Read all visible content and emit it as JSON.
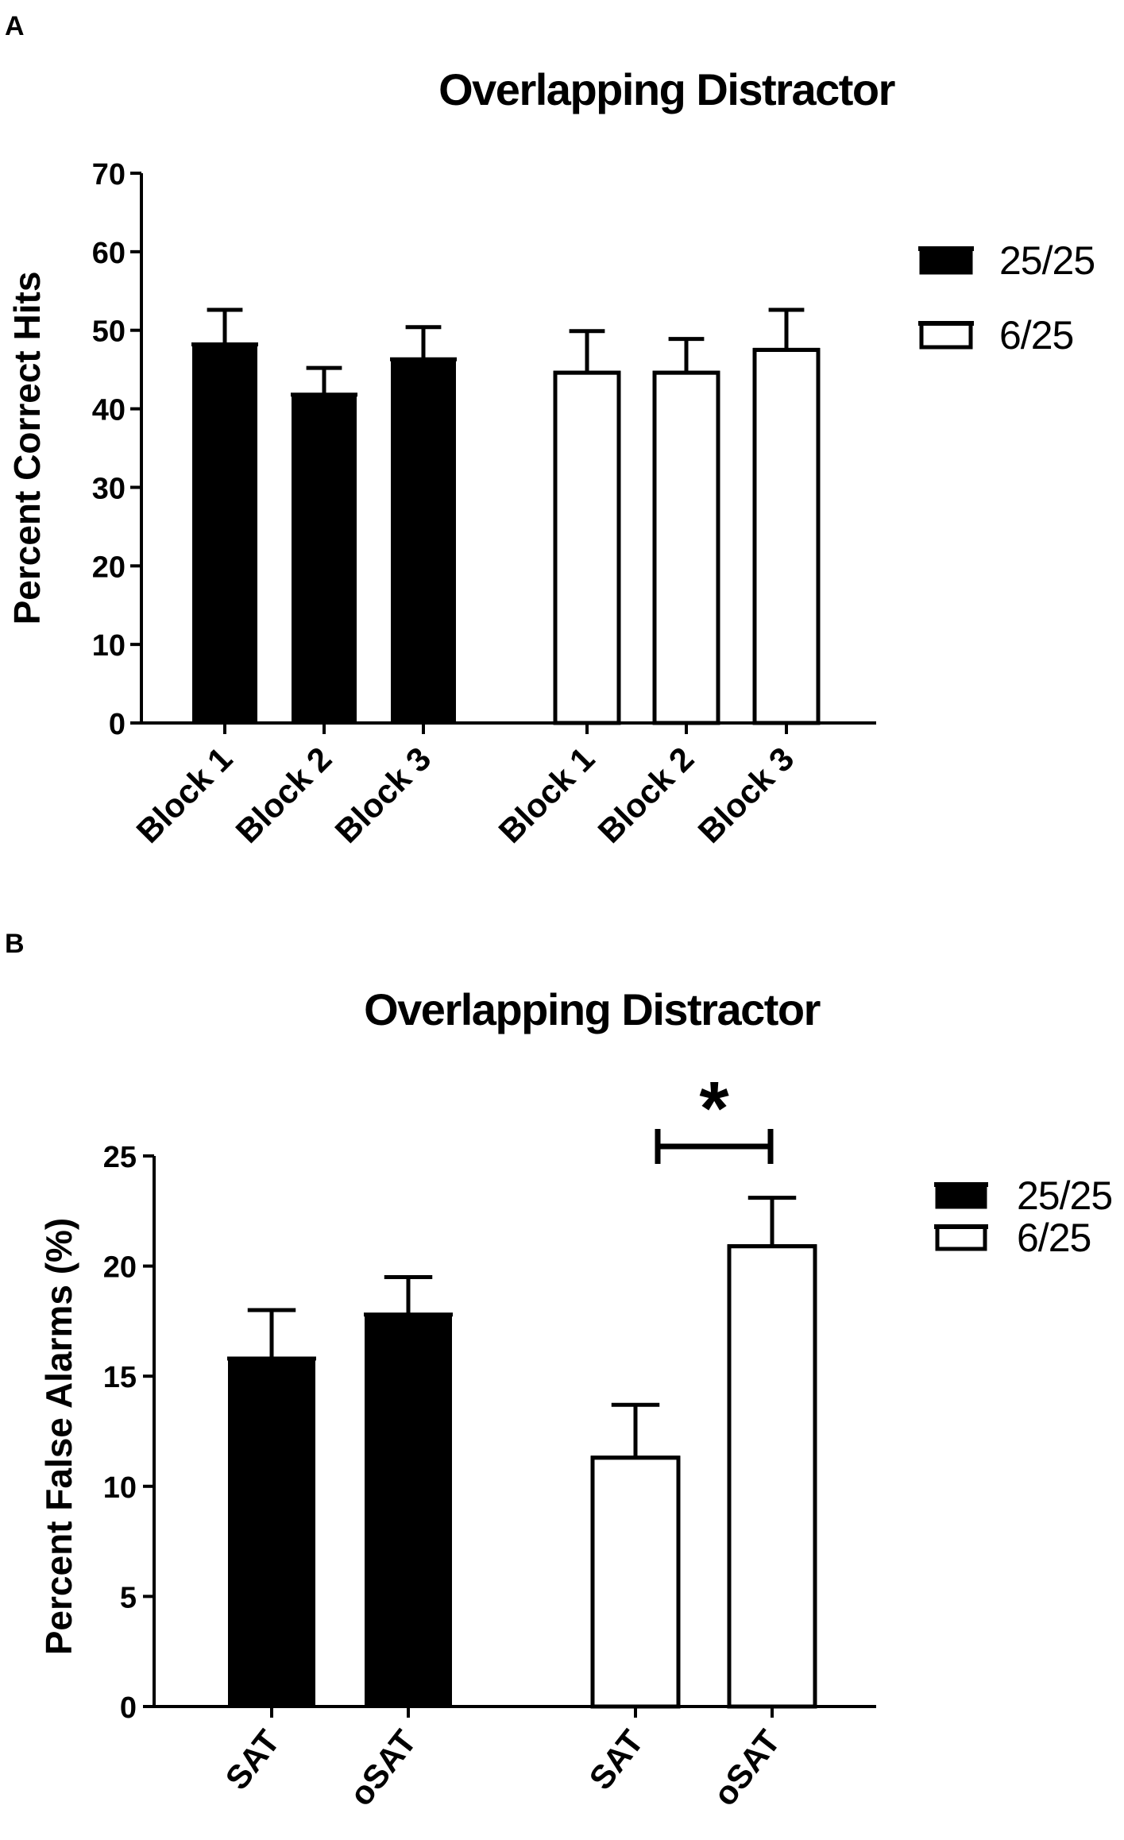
{
  "chart_data": [
    {
      "panel": "A",
      "type": "bar",
      "title": "Overlapping Distractor",
      "xlabel": "",
      "ylabel": "Percent Correct Hits",
      "ylim": [
        0,
        70
      ],
      "yticks": [
        0,
        10,
        20,
        30,
        40,
        50,
        60,
        70
      ],
      "categories": [
        "Block 1",
        "Block 2",
        "Block 3"
      ],
      "series": [
        {
          "name": "25/25",
          "fill": "#000000",
          "values": [
            48.2,
            41.8,
            46.3
          ],
          "errors": [
            4.4,
            3.4,
            4.1
          ]
        },
        {
          "name": "6/25",
          "fill": "#ffffff",
          "values": [
            44.6,
            44.6,
            47.5
          ],
          "errors": [
            5.3,
            4.3,
            5.1
          ]
        }
      ],
      "legend": {
        "position": "top-right",
        "entries": [
          "25/25",
          "6/25"
        ]
      },
      "grid": false,
      "annotations": []
    },
    {
      "panel": "B",
      "type": "bar",
      "title": "Overlapping Distractor",
      "xlabel": "",
      "ylabel": "Percent False Alarms (%)",
      "ylim": [
        0,
        25
      ],
      "yticks": [
        0,
        5,
        10,
        15,
        20,
        25
      ],
      "categories": [
        "SAT",
        "oSAT"
      ],
      "series": [
        {
          "name": "25/25",
          "fill": "#000000",
          "values": [
            15.8,
            17.8
          ],
          "errors": [
            2.2,
            1.7
          ]
        },
        {
          "name": "6/25",
          "fill": "#ffffff",
          "values": [
            11.3,
            20.9
          ],
          "errors": [
            2.4,
            2.2
          ]
        }
      ],
      "legend": {
        "position": "top-right",
        "entries": [
          "25/25",
          "6/25"
        ]
      },
      "grid": false,
      "annotations": [
        {
          "text": "*",
          "between": "6/25 SAT and 6/25 oSAT"
        }
      ]
    }
  ]
}
